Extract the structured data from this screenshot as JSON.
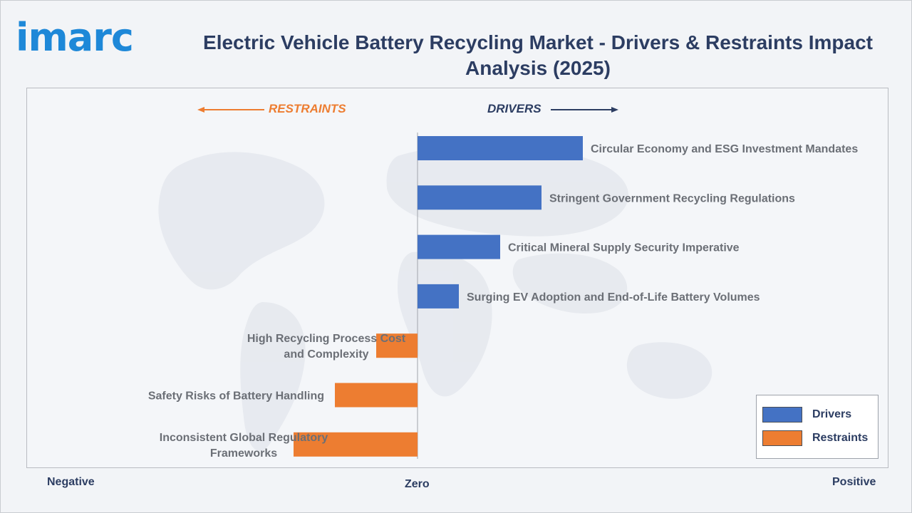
{
  "brand": {
    "logo_text": "imarc"
  },
  "title": "Electric Vehicle Battery Recycling Market - Drivers & Restraints Impact Analysis (2025)",
  "labels": {
    "restraints_direction": "RESTRAINTS",
    "drivers_direction": "DRIVERS",
    "negative": "Negative",
    "zero": "Zero",
    "positive": "Positive"
  },
  "colors": {
    "drivers": "#4472c4",
    "restraints": "#ed7d31",
    "restraints_label": "#ed7d31",
    "drivers_label": "#2c3d62"
  },
  "legend": [
    {
      "label": "Drivers",
      "color": "#4472c4"
    },
    {
      "label": "Restraints",
      "color": "#ed7d31"
    }
  ],
  "chart_data": {
    "type": "bar",
    "orientation": "horizontal",
    "title": "Electric Vehicle Battery Recycling Market - Drivers & Restraints Impact Analysis (2025)",
    "xlim": [
      -3,
      4
    ],
    "grid": false,
    "legend_position": "bottom-right",
    "categories": [
      "Circular Economy and ESG Investment Mandates",
      "Stringent Government Recycling Regulations",
      "Critical Mineral Supply Security Imperative",
      "Surging EV Adoption and End-of-Life Battery Volumes",
      "High Recycling Process Cost and Complexity",
      "Safety Risks of Battery Handling",
      "Inconsistent Global Regulatory Frameworks"
    ],
    "series": [
      {
        "name": "Drivers",
        "values": [
          4,
          3,
          2,
          1,
          null,
          null,
          null
        ]
      },
      {
        "name": "Restraints",
        "values": [
          null,
          null,
          null,
          null,
          -1,
          -2,
          -3
        ]
      }
    ]
  }
}
